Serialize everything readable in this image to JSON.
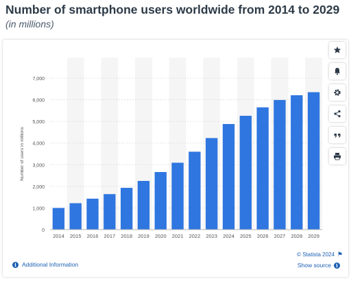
{
  "title": "Number of smartphone users worldwide from 2014 to 2029",
  "subtitle": "(in millions)",
  "toolbar": {
    "buttons": [
      "star-icon",
      "bell-icon",
      "gear-icon",
      "share-icon",
      "quote-icon",
      "print-icon"
    ]
  },
  "footer": {
    "copyright": "© Statista 2024",
    "additional_info": "Additional Information",
    "show_source": "Show source"
  },
  "colors": {
    "bar": "#2f76e0",
    "link": "#1a5fb4",
    "band": "#f5f5f5"
  },
  "chart_data": {
    "type": "bar",
    "categories": [
      "2014",
      "2015",
      "2016",
      "2017",
      "2018",
      "2019",
      "2020",
      "2021",
      "2022",
      "2023",
      "2024",
      "2025",
      "2026",
      "2027",
      "2028",
      "2029"
    ],
    "values": [
      1000,
      1220,
      1430,
      1640,
      1930,
      2250,
      2660,
      3090,
      3600,
      4230,
      4880,
      5260,
      5650,
      5990,
      6210,
      6350
    ],
    "ylabel": "Number of users in millions",
    "ylim": [
      0,
      7000
    ],
    "yticks": [
      "0",
      "1,000",
      "2,000",
      "3,000",
      "4,000",
      "5,000",
      "6,000",
      "7,000"
    ],
    "ytick_values": [
      0,
      1000,
      2000,
      3000,
      4000,
      5000,
      6000,
      7000
    ],
    "grid": true,
    "alternating_bands": true
  }
}
